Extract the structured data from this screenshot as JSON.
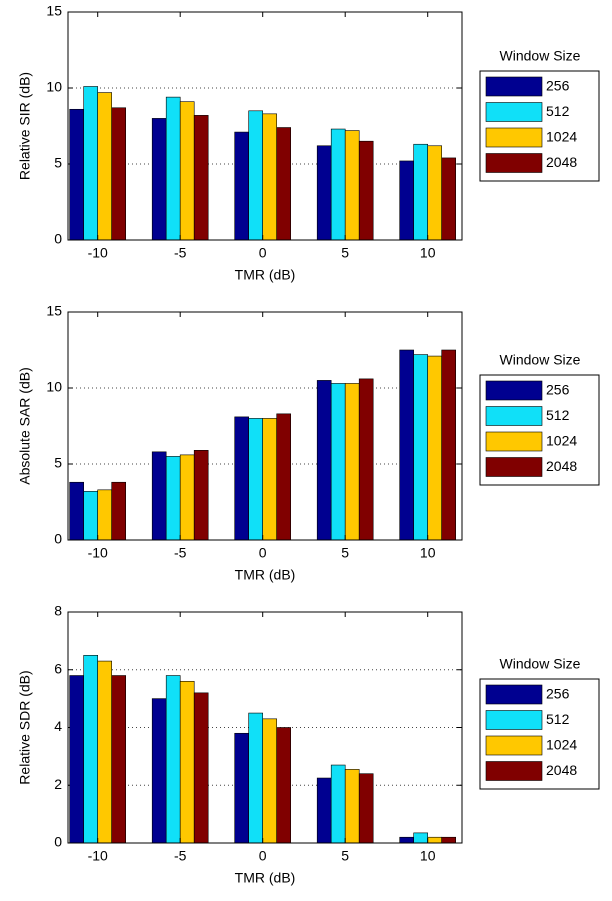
{
  "chart_data": [
    {
      "type": "bar",
      "xlabel": "TMR (dB)",
      "ylabel": "Relative SIR (dB)",
      "legend_title": "Window Size",
      "categories": [
        "-10",
        "-5",
        "0",
        "5",
        "10"
      ],
      "series": [
        {
          "name": "256",
          "color": "#000090",
          "values": [
            8.6,
            8.0,
            7.1,
            6.2,
            5.2
          ]
        },
        {
          "name": "512",
          "color": "#10e0f8",
          "values": [
            10.1,
            9.4,
            8.5,
            7.3,
            6.3
          ]
        },
        {
          "name": "1024",
          "color": "#ffc800",
          "values": [
            9.7,
            9.1,
            8.3,
            7.2,
            6.2
          ]
        },
        {
          "name": "2048",
          "color": "#800000",
          "values": [
            8.7,
            8.2,
            7.4,
            6.5,
            5.4
          ]
        }
      ],
      "ylim": [
        0,
        15
      ],
      "yticks": [
        0,
        5,
        10,
        15
      ],
      "grid": true
    },
    {
      "type": "bar",
      "xlabel": "TMR (dB)",
      "ylabel": "Absolute SAR (dB)",
      "legend_title": "Window Size",
      "categories": [
        "-10",
        "-5",
        "0",
        "5",
        "10"
      ],
      "series": [
        {
          "name": "256",
          "color": "#000090",
          "values": [
            3.8,
            5.8,
            8.1,
            10.5,
            12.5
          ]
        },
        {
          "name": "512",
          "color": "#10e0f8",
          "values": [
            3.2,
            5.5,
            8.0,
            10.3,
            12.2
          ]
        },
        {
          "name": "1024",
          "color": "#ffc800",
          "values": [
            3.3,
            5.6,
            8.0,
            10.3,
            12.1
          ]
        },
        {
          "name": "2048",
          "color": "#800000",
          "values": [
            3.8,
            5.9,
            8.3,
            10.6,
            12.5
          ]
        }
      ],
      "ylim": [
        0,
        15
      ],
      "yticks": [
        0,
        5,
        10,
        15
      ],
      "grid": true
    },
    {
      "type": "bar",
      "xlabel": "TMR (dB)",
      "ylabel": "Relative SDR (dB)",
      "legend_title": "Window Size",
      "categories": [
        "-10",
        "-5",
        "0",
        "5",
        "10"
      ],
      "series": [
        {
          "name": "256",
          "color": "#000090",
          "values": [
            5.8,
            5.0,
            3.8,
            2.25,
            0.2
          ]
        },
        {
          "name": "512",
          "color": "#10e0f8",
          "values": [
            6.5,
            5.8,
            4.5,
            2.7,
            0.35
          ]
        },
        {
          "name": "1024",
          "color": "#ffc800",
          "values": [
            6.3,
            5.6,
            4.3,
            2.55,
            0.2
          ]
        },
        {
          "name": "2048",
          "color": "#800000",
          "values": [
            5.8,
            5.2,
            4.0,
            2.4,
            0.2
          ]
        }
      ],
      "ylim": [
        0,
        8
      ],
      "yticks": [
        0,
        2,
        4,
        6,
        8
      ],
      "grid": true
    }
  ]
}
